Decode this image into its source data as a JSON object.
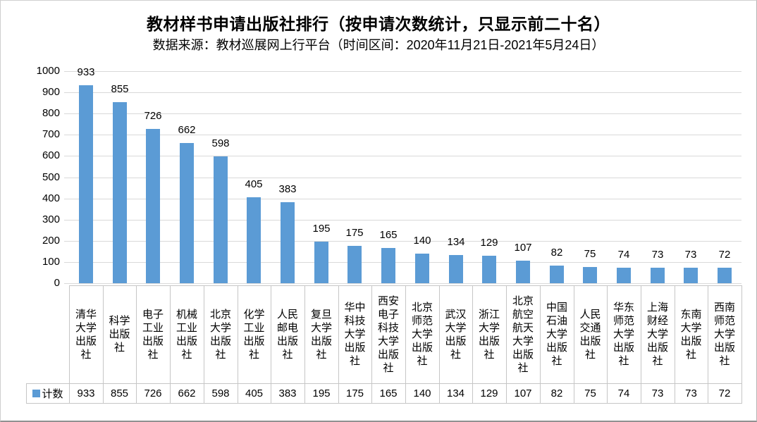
{
  "page": {
    "title": "教材样书申请出版社排行（按申请次数统计，只显示前二十名）",
    "subtitle": "数据来源：教材巡展网上行平台（时间区间：2020年11月21日-2021年5月24日）"
  },
  "chart_data": {
    "type": "bar",
    "title": "教材样书申请出版社排行（按申请次数统计，只显示前二十名）",
    "subtitle": "数据来源：教材巡展网上行平台（时间区间：2020年11月21日-2021年5月24日）",
    "categories": [
      "清华大学出版社",
      "科学出版社",
      "电子工业出版社",
      "机械工业出版社",
      "北京大学出版社",
      "化学工业出版社",
      "人民邮电出版社",
      "复旦大学出版社",
      "华中科技大学出版社",
      "西安电子科技大学出版社",
      "北京师范大学出版社",
      "武汉大学出版社",
      "浙江大学出版社",
      "北京航空航天大学出版社",
      "中国石油大学出版社",
      "人民交通出版社",
      "华东师范大学出版社",
      "上海财经大学出版社",
      "东南大学出版社",
      "西南师范大学出版社"
    ],
    "series": [
      {
        "name": "计数",
        "values": [
          933,
          855,
          726,
          662,
          598,
          405,
          383,
          195,
          175,
          165,
          140,
          134,
          129,
          107,
          82,
          75,
          74,
          73,
          73,
          72
        ]
      }
    ],
    "xlabel": "",
    "ylabel": "",
    "ylim": [
      0,
      1000
    ],
    "ytick_interval": 100,
    "grid": true,
    "data_labels": true,
    "data_table_with_legend_keys": true,
    "legend_position": "data-table-left",
    "colors": {
      "bar": "#5B9BD5",
      "gridline": "#D9D9D9",
      "table_border": "#C6C6C6",
      "text": "#000000",
      "background": "#FFFFFF"
    }
  }
}
